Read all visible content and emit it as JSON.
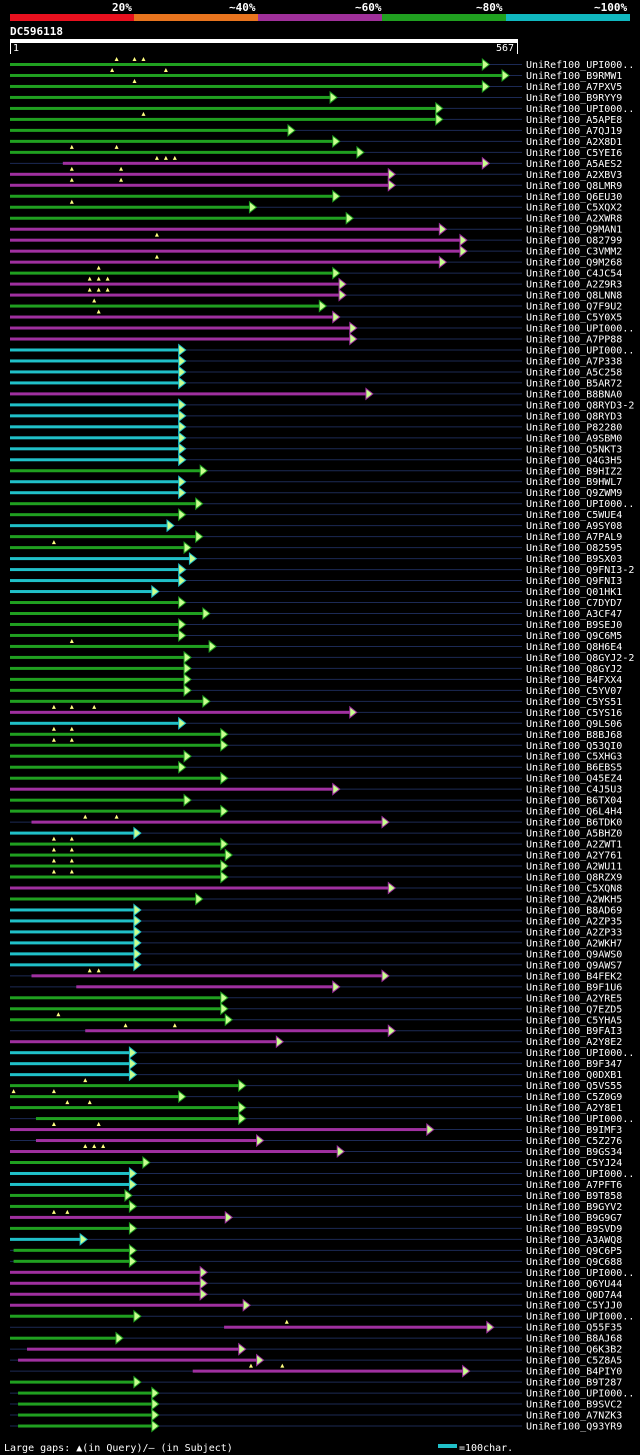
{
  "legend": {
    "scale_labels": [
      "20%",
      "~40%",
      "~60%",
      "~80%",
      "~100%"
    ],
    "scale_colors": [
      "#e8101e",
      "#e8741e",
      "#a0309a",
      "#20a020",
      "#10b8c0"
    ]
  },
  "query": {
    "id": "DC596118",
    "start": "1",
    "end": "567"
  },
  "footer": {
    "gaps_text": "Large gaps: ▲(in Query)/– (in Subject)",
    "scale_text": "=100char."
  },
  "chart_data": {
    "type": "alignment",
    "query_length": 567,
    "colors": {
      "magenta": "#a030a0",
      "green": "#20a020",
      "cyan": "#20c0c8"
    },
    "hits": [
      {
        "label": "UniRef100_UPI000..",
        "start": 1,
        "end": 535,
        "color": "green",
        "gaps": [
          120,
          140,
          150
        ]
      },
      {
        "label": "UniRef100_B9RMW1",
        "start": 1,
        "end": 557,
        "color": "green",
        "gaps": [
          115,
          175
        ]
      },
      {
        "label": "UniRef100_A7PXV5",
        "start": 1,
        "end": 535,
        "color": "green",
        "gaps": [
          140
        ]
      },
      {
        "label": "UniRef100_B9RYY9",
        "start": 1,
        "end": 365,
        "color": "green",
        "gaps": []
      },
      {
        "label": "UniRef100_UPI000..",
        "start": 1,
        "end": 483,
        "color": "green",
        "gaps": []
      },
      {
        "label": "UniRef100_A5APE8",
        "start": 1,
        "end": 483,
        "color": "green",
        "gaps": [
          150
        ]
      },
      {
        "label": "UniRef100_A7QJ19",
        "start": 1,
        "end": 318,
        "color": "green",
        "gaps": []
      },
      {
        "label": "UniRef100_A2X8D1",
        "start": 1,
        "end": 368,
        "color": "green",
        "gaps": []
      },
      {
        "label": "UniRef100_C5YEI6",
        "start": 1,
        "end": 395,
        "color": "green",
        "gaps": [
          70,
          120
        ]
      },
      {
        "label": "UniRef100_A5AES2",
        "start": 60,
        "end": 535,
        "color": "magenta",
        "gaps": [
          165,
          175,
          185
        ]
      },
      {
        "label": "UniRef100_A2XBV3",
        "start": 1,
        "end": 430,
        "color": "magenta",
        "gaps": [
          70,
          125
        ]
      },
      {
        "label": "UniRef100_Q8LMR9",
        "start": 1,
        "end": 430,
        "color": "magenta",
        "gaps": [
          70,
          125
        ]
      },
      {
        "label": "UniRef100_Q6EU30",
        "start": 1,
        "end": 368,
        "color": "green",
        "gaps": []
      },
      {
        "label": "UniRef100_C5XQX2",
        "start": 1,
        "end": 275,
        "color": "green",
        "gaps": [
          70
        ]
      },
      {
        "label": "UniRef100_A2XWR8",
        "start": 1,
        "end": 383,
        "color": "green",
        "gaps": []
      },
      {
        "label": "UniRef100_Q9MAN1",
        "start": 1,
        "end": 487,
        "color": "magenta",
        "gaps": []
      },
      {
        "label": "UniRef100_O82799",
        "start": 1,
        "end": 510,
        "color": "magenta",
        "gaps": [
          165
        ]
      },
      {
        "label": "UniRef100_C3VMM2",
        "start": 1,
        "end": 510,
        "color": "magenta",
        "gaps": []
      },
      {
        "label": "UniRef100_Q9M268",
        "start": 1,
        "end": 487,
        "color": "magenta",
        "gaps": [
          165
        ]
      },
      {
        "label": "UniRef100_C4JC54",
        "start": 1,
        "end": 368,
        "color": "green",
        "gaps": [
          100
        ]
      },
      {
        "label": "UniRef100_A2Z9R3",
        "start": 1,
        "end": 375,
        "color": "magenta",
        "gaps": [
          90,
          100,
          110
        ]
      },
      {
        "label": "UniRef100_Q8LNN8",
        "start": 1,
        "end": 375,
        "color": "magenta",
        "gaps": [
          90,
          100,
          110
        ]
      },
      {
        "label": "UniRef100_Q7F9U2",
        "start": 1,
        "end": 353,
        "color": "green",
        "gaps": [
          95
        ]
      },
      {
        "label": "UniRef100_C5Y0X5",
        "start": 1,
        "end": 368,
        "color": "magenta",
        "gaps": [
          100
        ]
      },
      {
        "label": "UniRef100_UPI000..",
        "start": 1,
        "end": 387,
        "color": "magenta",
        "gaps": []
      },
      {
        "label": "UniRef100_A7PP88",
        "start": 1,
        "end": 387,
        "color": "magenta",
        "gaps": []
      },
      {
        "label": "UniRef100_UPI000..",
        "start": 1,
        "end": 196,
        "color": "cyan",
        "gaps": []
      },
      {
        "label": "UniRef100_A7P338",
        "start": 1,
        "end": 196,
        "color": "cyan",
        "gaps": []
      },
      {
        "label": "UniRef100_A5C258",
        "start": 1,
        "end": 196,
        "color": "cyan",
        "gaps": []
      },
      {
        "label": "UniRef100_B5AR72",
        "start": 1,
        "end": 196,
        "color": "cyan",
        "gaps": []
      },
      {
        "label": "UniRef100_B8BNA0",
        "start": 1,
        "end": 405,
        "color": "magenta",
        "gaps": []
      },
      {
        "label": "UniRef100_Q8RYD3-2",
        "start": 1,
        "end": 196,
        "color": "cyan",
        "gaps": []
      },
      {
        "label": "UniRef100_Q8RYD3",
        "start": 1,
        "end": 196,
        "color": "cyan",
        "gaps": []
      },
      {
        "label": "UniRef100_P82280",
        "start": 1,
        "end": 196,
        "color": "cyan",
        "gaps": []
      },
      {
        "label": "UniRef100_A9SBM0",
        "start": 1,
        "end": 196,
        "color": "cyan",
        "gaps": []
      },
      {
        "label": "UniRef100_Q5NKT3",
        "start": 1,
        "end": 196,
        "color": "cyan",
        "gaps": []
      },
      {
        "label": "UniRef100_Q4G3H5",
        "start": 1,
        "end": 196,
        "color": "cyan",
        "gaps": []
      },
      {
        "label": "UniRef100_B9HIZ2",
        "start": 1,
        "end": 220,
        "color": "green",
        "gaps": []
      },
      {
        "label": "UniRef100_B9HWL7",
        "start": 1,
        "end": 196,
        "color": "cyan",
        "gaps": []
      },
      {
        "label": "UniRef100_Q9ZWM9",
        "start": 1,
        "end": 196,
        "color": "cyan",
        "gaps": []
      },
      {
        "label": "UniRef100_UPI000..",
        "start": 1,
        "end": 215,
        "color": "green",
        "gaps": []
      },
      {
        "label": "UniRef100_C5WUE4",
        "start": 1,
        "end": 196,
        "color": "green",
        "gaps": []
      },
      {
        "label": "UniRef100_A9SY08",
        "start": 1,
        "end": 183,
        "color": "cyan",
        "gaps": []
      },
      {
        "label": "UniRef100_A7PAL9",
        "start": 1,
        "end": 215,
        "color": "green",
        "gaps": []
      },
      {
        "label": "UniRef100_O82595",
        "start": 1,
        "end": 202,
        "color": "green",
        "gaps": [
          50
        ]
      },
      {
        "label": "UniRef100_B9SX03",
        "start": 1,
        "end": 208,
        "color": "cyan",
        "gaps": []
      },
      {
        "label": "UniRef100_Q9FNI3-2",
        "start": 1,
        "end": 196,
        "color": "cyan",
        "gaps": []
      },
      {
        "label": "UniRef100_Q9FNI3",
        "start": 1,
        "end": 196,
        "color": "cyan",
        "gaps": []
      },
      {
        "label": "UniRef100_Q01HK1",
        "start": 1,
        "end": 166,
        "color": "cyan",
        "gaps": []
      },
      {
        "label": "UniRef100_C7DYD7",
        "start": 1,
        "end": 196,
        "color": "green",
        "gaps": []
      },
      {
        "label": "UniRef100_A3CF47",
        "start": 1,
        "end": 223,
        "color": "green",
        "gaps": []
      },
      {
        "label": "UniRef100_B9SEJ0",
        "start": 1,
        "end": 196,
        "color": "green",
        "gaps": []
      },
      {
        "label": "UniRef100_Q9C6M5",
        "start": 1,
        "end": 196,
        "color": "green",
        "gaps": []
      },
      {
        "label": "UniRef100_Q8H6E4",
        "start": 1,
        "end": 230,
        "color": "green",
        "gaps": [
          70
        ]
      },
      {
        "label": "UniRef100_Q8GYJ2-2",
        "start": 1,
        "end": 202,
        "color": "green",
        "gaps": []
      },
      {
        "label": "UniRef100_Q8GYJ2",
        "start": 1,
        "end": 202,
        "color": "green",
        "gaps": []
      },
      {
        "label": "UniRef100_B4FXX4",
        "start": 1,
        "end": 202,
        "color": "green",
        "gaps": []
      },
      {
        "label": "UniRef100_C5YV07",
        "start": 1,
        "end": 202,
        "color": "green",
        "gaps": []
      },
      {
        "label": "UniRef100_C5YS51",
        "start": 1,
        "end": 223,
        "color": "green",
        "gaps": []
      },
      {
        "label": "UniRef100_C5YS16",
        "start": 1,
        "end": 387,
        "color": "magenta",
        "gaps": [
          50,
          70,
          95
        ]
      },
      {
        "label": "UniRef100_Q9LS06",
        "start": 1,
        "end": 196,
        "color": "cyan",
        "gaps": []
      },
      {
        "label": "UniRef100_B8BJ68",
        "start": 1,
        "end": 243,
        "color": "green",
        "gaps": [
          50,
          70
        ]
      },
      {
        "label": "UniRef100_Q53QI0",
        "start": 1,
        "end": 243,
        "color": "green",
        "gaps": [
          50,
          70
        ]
      },
      {
        "label": "UniRef100_C5XHG3",
        "start": 1,
        "end": 202,
        "color": "green",
        "gaps": []
      },
      {
        "label": "UniRef100_B6EBS5",
        "start": 1,
        "end": 196,
        "color": "green",
        "gaps": []
      },
      {
        "label": "UniRef100_Q45EZ4",
        "start": 1,
        "end": 243,
        "color": "green",
        "gaps": []
      },
      {
        "label": "UniRef100_C4J5U3",
        "start": 1,
        "end": 368,
        "color": "magenta",
        "gaps": []
      },
      {
        "label": "UniRef100_B6TX04",
        "start": 1,
        "end": 202,
        "color": "green",
        "gaps": []
      },
      {
        "label": "UniRef100_Q6L4H4",
        "start": 1,
        "end": 243,
        "color": "green",
        "gaps": []
      },
      {
        "label": "UniRef100_B6TDK0",
        "start": 25,
        "end": 423,
        "color": "magenta",
        "gaps": [
          85,
          120
        ]
      },
      {
        "label": "UniRef100_A5BHZ0",
        "start": 1,
        "end": 146,
        "color": "cyan",
        "gaps": []
      },
      {
        "label": "UniRef100_A2ZWT1",
        "start": 1,
        "end": 243,
        "color": "green",
        "gaps": [
          50,
          70
        ]
      },
      {
        "label": "UniRef100_A2Y761",
        "start": 1,
        "end": 248,
        "color": "green",
        "gaps": [
          50,
          70
        ]
      },
      {
        "label": "UniRef100_A2WU11",
        "start": 1,
        "end": 243,
        "color": "green",
        "gaps": [
          50,
          70
        ]
      },
      {
        "label": "UniRef100_Q8RZX9",
        "start": 1,
        "end": 243,
        "color": "green",
        "gaps": [
          50,
          70
        ]
      },
      {
        "label": "UniRef100_C5XQN8",
        "start": 1,
        "end": 430,
        "color": "magenta",
        "gaps": []
      },
      {
        "label": "UniRef100_A2WKH5",
        "start": 1,
        "end": 215,
        "color": "green",
        "gaps": []
      },
      {
        "label": "UniRef100_B8AD69",
        "start": 1,
        "end": 146,
        "color": "cyan",
        "gaps": []
      },
      {
        "label": "UniRef100_A2ZP35",
        "start": 1,
        "end": 146,
        "color": "cyan",
        "gaps": []
      },
      {
        "label": "UniRef100_A2ZP33",
        "start": 1,
        "end": 146,
        "color": "cyan",
        "gaps": []
      },
      {
        "label": "UniRef100_A2WKH7",
        "start": 1,
        "end": 146,
        "color": "cyan",
        "gaps": []
      },
      {
        "label": "UniRef100_Q9AWS0",
        "start": 1,
        "end": 146,
        "color": "cyan",
        "gaps": []
      },
      {
        "label": "UniRef100_Q9AWS7",
        "start": 1,
        "end": 146,
        "color": "cyan",
        "gaps": []
      },
      {
        "label": "UniRef100_B4FEK2",
        "start": 25,
        "end": 423,
        "color": "magenta",
        "gaps": [
          90,
          100
        ]
      },
      {
        "label": "UniRef100_B9F1U6",
        "start": 75,
        "end": 368,
        "color": "magenta",
        "gaps": []
      },
      {
        "label": "UniRef100_A2YRE5",
        "start": 1,
        "end": 243,
        "color": "green",
        "gaps": []
      },
      {
        "label": "UniRef100_Q7EZD5",
        "start": 1,
        "end": 243,
        "color": "green",
        "gaps": []
      },
      {
        "label": "UniRef100_C5YHA5",
        "start": 1,
        "end": 248,
        "color": "green",
        "gaps": [
          55
        ]
      },
      {
        "label": "UniRef100_B9FAI3",
        "start": 85,
        "end": 430,
        "color": "magenta",
        "gaps": [
          130,
          185
        ]
      },
      {
        "label": "UniRef100_A2Y8E2",
        "start": 1,
        "end": 305,
        "color": "magenta",
        "gaps": []
      },
      {
        "label": "UniRef100_UPI000..",
        "start": 1,
        "end": 141,
        "color": "cyan",
        "gaps": []
      },
      {
        "label": "UniRef100_B9F347",
        "start": 1,
        "end": 141,
        "color": "cyan",
        "gaps": []
      },
      {
        "label": "UniRef100_Q0DXB1",
        "start": 1,
        "end": 141,
        "color": "cyan",
        "gaps": []
      },
      {
        "label": "UniRef100_Q5VS55",
        "start": 1,
        "end": 263,
        "color": "green",
        "gaps": [
          85
        ]
      },
      {
        "label": "UniRef100_C5Z0G9",
        "start": 1,
        "end": 196,
        "color": "green",
        "gaps": [
          5,
          50
        ]
      },
      {
        "label": "UniRef100_A2Y8E1",
        "start": 1,
        "end": 263,
        "color": "green",
        "gaps": [
          65,
          90
        ]
      },
      {
        "label": "UniRef100_UPI000..",
        "start": 30,
        "end": 263,
        "color": "green",
        "gaps": []
      },
      {
        "label": "UniRef100_B9IMF3",
        "start": 1,
        "end": 473,
        "color": "magenta",
        "gaps": [
          50,
          100
        ]
      },
      {
        "label": "UniRef100_C5Z276",
        "start": 30,
        "end": 283,
        "color": "magenta",
        "gaps": []
      },
      {
        "label": "UniRef100_B9GS34",
        "start": 1,
        "end": 373,
        "color": "magenta",
        "gaps": [
          85,
          95,
          105
        ]
      },
      {
        "label": "UniRef100_C5YJ24",
        "start": 1,
        "end": 156,
        "color": "green",
        "gaps": []
      },
      {
        "label": "UniRef100_UPI000..",
        "start": 1,
        "end": 141,
        "color": "cyan",
        "gaps": []
      },
      {
        "label": "UniRef100_A7PFT6",
        "start": 1,
        "end": 141,
        "color": "cyan",
        "gaps": []
      },
      {
        "label": "UniRef100_B9T858",
        "start": 1,
        "end": 136,
        "color": "green",
        "gaps": []
      },
      {
        "label": "UniRef100_B9GYV2",
        "start": 1,
        "end": 141,
        "color": "green",
        "gaps": []
      },
      {
        "label": "UniRef100_B9G9G7",
        "start": 1,
        "end": 248,
        "color": "magenta",
        "gaps": [
          50,
          65
        ]
      },
      {
        "label": "UniRef100_B9SVD9",
        "start": 1,
        "end": 141,
        "color": "green",
        "gaps": []
      },
      {
        "label": "UniRef100_A3AWQ8",
        "start": 1,
        "end": 86,
        "color": "cyan",
        "gaps": []
      },
      {
        "label": "UniRef100_Q9C6P5",
        "start": 5,
        "end": 141,
        "color": "green",
        "gaps": []
      },
      {
        "label": "UniRef100_Q9C688",
        "start": 5,
        "end": 141,
        "color": "green",
        "gaps": []
      },
      {
        "label": "UniRef100_UPI000..",
        "start": 1,
        "end": 220,
        "color": "magenta",
        "gaps": []
      },
      {
        "label": "UniRef100_Q6YU44",
        "start": 1,
        "end": 220,
        "color": "magenta",
        "gaps": []
      },
      {
        "label": "UniRef100_Q0D7A4",
        "start": 1,
        "end": 220,
        "color": "magenta",
        "gaps": []
      },
      {
        "label": "UniRef100_C5YJJ0",
        "start": 1,
        "end": 268,
        "color": "magenta",
        "gaps": []
      },
      {
        "label": "UniRef100_UPI000..",
        "start": 1,
        "end": 146,
        "color": "green",
        "gaps": []
      },
      {
        "label": "UniRef100_Q55F35",
        "start": 240,
        "end": 540,
        "color": "magenta",
        "gaps": [
          310
        ]
      },
      {
        "label": "UniRef100_B8AJ68",
        "start": 1,
        "end": 126,
        "color": "green",
        "gaps": []
      },
      {
        "label": "UniRef100_Q6K3B2",
        "start": 20,
        "end": 263,
        "color": "magenta",
        "gaps": []
      },
      {
        "label": "UniRef100_C5Z8A5",
        "start": 10,
        "end": 283,
        "color": "magenta",
        "gaps": []
      },
      {
        "label": "UniRef100_B4PIY0",
        "start": 205,
        "end": 513,
        "color": "magenta",
        "gaps": [
          270,
          305
        ]
      },
      {
        "label": "UniRef100_B9T287",
        "start": 1,
        "end": 146,
        "color": "green",
        "gaps": []
      },
      {
        "label": "UniRef100_UPI000..",
        "start": 10,
        "end": 166,
        "color": "green",
        "gaps": []
      },
      {
        "label": "UniRef100_B9SVC2",
        "start": 10,
        "end": 166,
        "color": "green",
        "gaps": []
      },
      {
        "label": "UniRef100_A7NZK3",
        "start": 10,
        "end": 166,
        "color": "green",
        "gaps": []
      },
      {
        "label": "UniRef100_Q93YR9",
        "start": 10,
        "end": 166,
        "color": "green",
        "gaps": []
      }
    ]
  }
}
